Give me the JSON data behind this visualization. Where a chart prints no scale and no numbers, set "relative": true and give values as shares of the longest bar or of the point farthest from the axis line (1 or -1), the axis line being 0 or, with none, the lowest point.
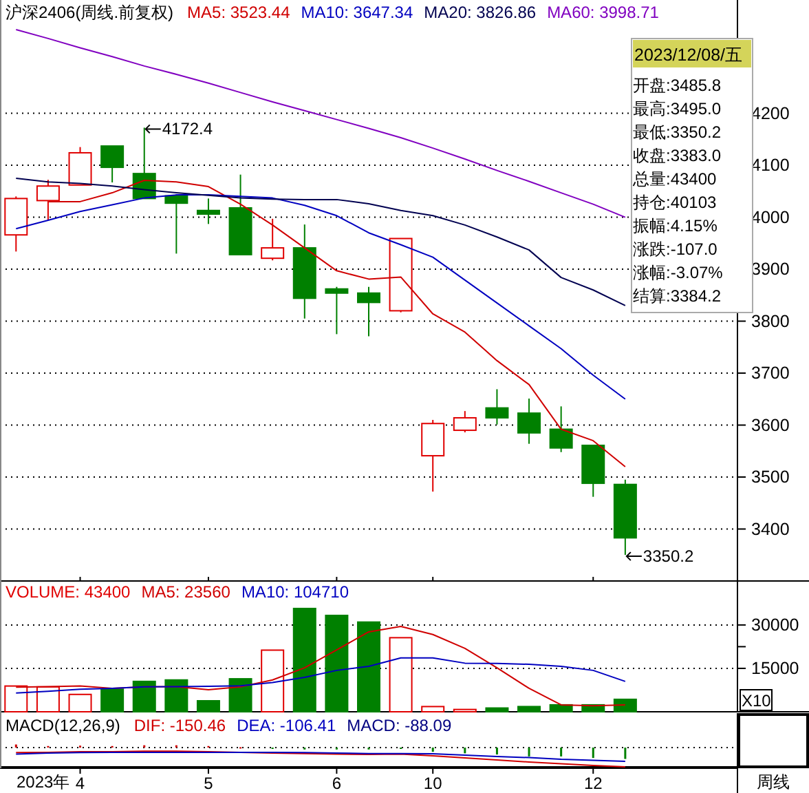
{
  "chart_data": [
    {
      "type": "candlestick",
      "title": "沪深2406(周线.前复权)",
      "categories": [
        null,
        null,
        "4",
        null,
        null,
        null,
        "5",
        null,
        null,
        null,
        "6",
        null,
        null,
        "10",
        null,
        null,
        null,
        null,
        "12",
        null,
        null,
        null,
        null
      ],
      "ohlc": [
        [
          3966,
          4040,
          3934,
          4036
        ],
        [
          4032,
          4072,
          3994,
          4060
        ],
        [
          4062,
          4135,
          4062,
          4124
        ],
        [
          4137,
          4137,
          4067,
          4096
        ],
        [
          4084,
          4172.4,
          4036,
          4036
        ],
        [
          4041,
          4041,
          3930,
          4027
        ],
        [
          4013,
          4036,
          3987,
          4006
        ],
        [
          4018,
          4082,
          3928,
          3928
        ],
        [
          3921,
          3997,
          3917,
          3941
        ],
        [
          3941,
          3986,
          3805,
          3844
        ],
        [
          3862,
          3866,
          3775,
          3854
        ],
        [
          3854,
          3866,
          3771,
          3836
        ],
        [
          3820,
          3959,
          3817,
          3959
        ],
        [
          3541,
          3610,
          3472,
          3603
        ],
        [
          3590,
          3627,
          3586,
          3614
        ],
        [
          3633,
          3669,
          3601,
          3614
        ],
        [
          3623,
          3651,
          3564,
          3585
        ],
        [
          3592,
          3636,
          3548,
          3556
        ],
        [
          3561,
          3561,
          3462,
          3488
        ],
        [
          3485.8,
          3495.0,
          3350.2,
          3383.0
        ],
        null,
        null,
        null
      ],
      "colors": [
        "#e00000",
        "#e00000",
        "#e00000",
        "#008000",
        "#008000",
        "#008000",
        "#008000",
        "#008000",
        "#e00000",
        "#008000",
        "#008000",
        "#008000",
        "#e00000",
        "#e00000",
        "#e00000",
        "#008000",
        "#008000",
        "#008000",
        "#008000",
        "#008000",
        null,
        null,
        null
      ],
      "series": [
        {
          "name": "MA5: 3523.44",
          "type": "line",
          "color": "#d00000",
          "values": [
            null,
            4030,
            4030,
            4047,
            4071,
            4068,
            4059,
            4025,
            3985,
            3941,
            3897,
            3881,
            3885,
            3814,
            3779,
            3724,
            3678,
            3592,
            3570,
            3520,
            null,
            null,
            null
          ]
        },
        {
          "name": "MA10: 3647.34",
          "type": "line",
          "color": "#0000c0",
          "values": [
            3978,
            3994,
            4011,
            4024,
            4037,
            4043,
            4043,
            4040,
            4037,
            4023,
            4003,
            3970,
            3947,
            3923,
            3879,
            3835,
            3791,
            3747,
            3696,
            3650,
            null,
            null,
            null
          ]
        },
        {
          "name": "MA20: 3826.86",
          "type": "line",
          "color": "#000050",
          "values": [
            4075,
            4068,
            4065,
            4060,
            4053,
            4047,
            4042,
            4037,
            4035,
            4034,
            4034,
            4026,
            4013,
            4003,
            3985,
            3962,
            3937,
            3884,
            3860,
            3830,
            null,
            null,
            null
          ]
        },
        {
          "name": "MA60: 3998.71",
          "type": "line",
          "color": "#8000c0",
          "values": [
            4361,
            4344,
            4326,
            4309,
            4291,
            4275,
            4258,
            4240,
            4222,
            4205,
            4188,
            4171,
            4153,
            4133,
            4112,
            4090,
            4069,
            4047,
            4025,
            4000,
            null,
            null,
            null
          ]
        }
      ],
      "ylim": [
        3300,
        4418
      ],
      "yticks": [
        3400,
        3500,
        3600,
        3700,
        3800,
        3900,
        4000,
        4100,
        4200
      ],
      "grid": "y",
      "legend": "top",
      "tick_labels": "y",
      "annotations": [
        "4172.4",
        "3350.2"
      ]
    },
    {
      "type": "bar",
      "categories": [
        null,
        null,
        "4",
        null,
        null,
        null,
        "5",
        null,
        null,
        null,
        "6",
        null,
        null,
        "10",
        null,
        null,
        null,
        null,
        "12",
        null,
        null,
        null,
        null
      ],
      "series": [
        {
          "name": "VOLUME: 43400",
          "type": "bar",
          "color": "#e00000",
          "colors": [
            "#e00000",
            "#e00000",
            "#e00000",
            "#008000",
            "#008000",
            "#008000",
            "#008000",
            "#008000",
            "#e00000",
            "#008000",
            "#008000",
            "#008000",
            "#e00000",
            "#e00000",
            "#e00000",
            "#008000",
            "#008000",
            "#008000",
            "#008000",
            "#008000",
            null,
            null,
            null
          ],
          "values": [
            8900,
            8600,
            6000,
            7800,
            10500,
            11000,
            3800,
            11400,
            21300,
            35700,
            33300,
            31000,
            25600,
            1800,
            800,
            1300,
            1800,
            2400,
            2400,
            4300,
            null,
            null,
            null
          ]
        },
        {
          "name": "MA5: 23560",
          "type": "line",
          "color": "#d00000",
          "values": [
            8500,
            8700,
            8900,
            8100,
            8600,
            8700,
            7600,
            8600,
            11000,
            15200,
            21400,
            27600,
            29500,
            26700,
            21900,
            15200,
            8100,
            2400,
            2100,
            2400,
            null,
            null,
            null
          ]
        },
        {
          "name": "MA10: 104710",
          "type": "line",
          "color": "#0000c0",
          "values": [
            6500,
            7100,
            7800,
            8100,
            8600,
            8700,
            8800,
            9000,
            10100,
            11900,
            14300,
            15700,
            18600,
            18600,
            16800,
            16700,
            16400,
            15700,
            14300,
            10500,
            null,
            null,
            null
          ]
        }
      ],
      "ylim": [
        0,
        45200
      ],
      "yticks": [
        15000,
        {
          "value": 22500,
          "label": null
        },
        30000
      ],
      "grid": "y",
      "legend": "top left",
      "tick_labels": "y",
      "annotations": [
        "X10"
      ]
    },
    {
      "type": "line",
      "title": "MACD(12,26,9)",
      "relative": true,
      "xlabel": "2023年",
      "categories": [
        null,
        null,
        "4",
        null,
        null,
        null,
        "5",
        null,
        null,
        null,
        "6",
        null,
        null,
        "10",
        null,
        null,
        null,
        null,
        "12",
        null,
        null,
        null,
        null
      ],
      "series": [
        {
          "name": "DIF: -150.46",
          "type": "line",
          "color": "#d00000",
          "values": [
            -0.26,
            -0.25,
            -0.21,
            -0.21,
            -0.19,
            -0.19,
            -0.21,
            -0.25,
            -0.29,
            -0.31,
            -0.34,
            -0.36,
            -0.34,
            -0.43,
            -0.54,
            -0.64,
            -0.75,
            -0.84,
            -0.93,
            -1,
            null,
            null,
            null
          ]
        },
        {
          "name": "DEA: -106.41",
          "type": "line",
          "color": "#0000c0",
          "values": [
            -0.34,
            -0.29,
            -0.26,
            -0.25,
            -0.25,
            -0.25,
            -0.25,
            -0.25,
            -0.25,
            -0.26,
            -0.29,
            -0.31,
            -0.31,
            -0.32,
            -0.39,
            -0.46,
            -0.52,
            -0.61,
            -0.66,
            -0.71,
            null,
            null,
            null
          ]
        },
        {
          "name": "MACD: -88.09",
          "type": "bar",
          "color": "#000080",
          "colors": [
            "#d00000",
            "#d00000",
            "#d00000",
            "#d00000",
            "#d00000",
            "#d00000",
            "#d00000",
            "#d00000",
            "#008000",
            "#008000",
            "#008000",
            "#008000",
            "#008000",
            "#008000",
            "#008000",
            "#008000",
            "#008000",
            "#008000",
            "#008000",
            "#008000",
            null,
            null,
            null
          ],
          "values": [
            0.16,
            0.08,
            0.1,
            0.08,
            0.12,
            0.12,
            0.08,
            0.02,
            -0.04,
            -0.1,
            -0.1,
            -0.1,
            -0.06,
            -0.22,
            -0.3,
            -0.36,
            -0.46,
            -0.46,
            -0.54,
            -0.59,
            null,
            null,
            null
          ]
        }
      ],
      "legend": "top left",
      "tick_labels": "x",
      "annotations": [
        "周线"
      ]
    },
    {
      "type": "other",
      "title": "2023/12/08/五",
      "annotations": [
        "开盘:3485.8",
        "最高:3495.0",
        "最低:3350.2",
        "收盘:3383.0",
        "总量:43400",
        "持仓:40103",
        "振幅:4.15%",
        "涨跌:-107.0",
        "涨幅:-3.07%",
        "结算:3384.2"
      ]
    }
  ]
}
